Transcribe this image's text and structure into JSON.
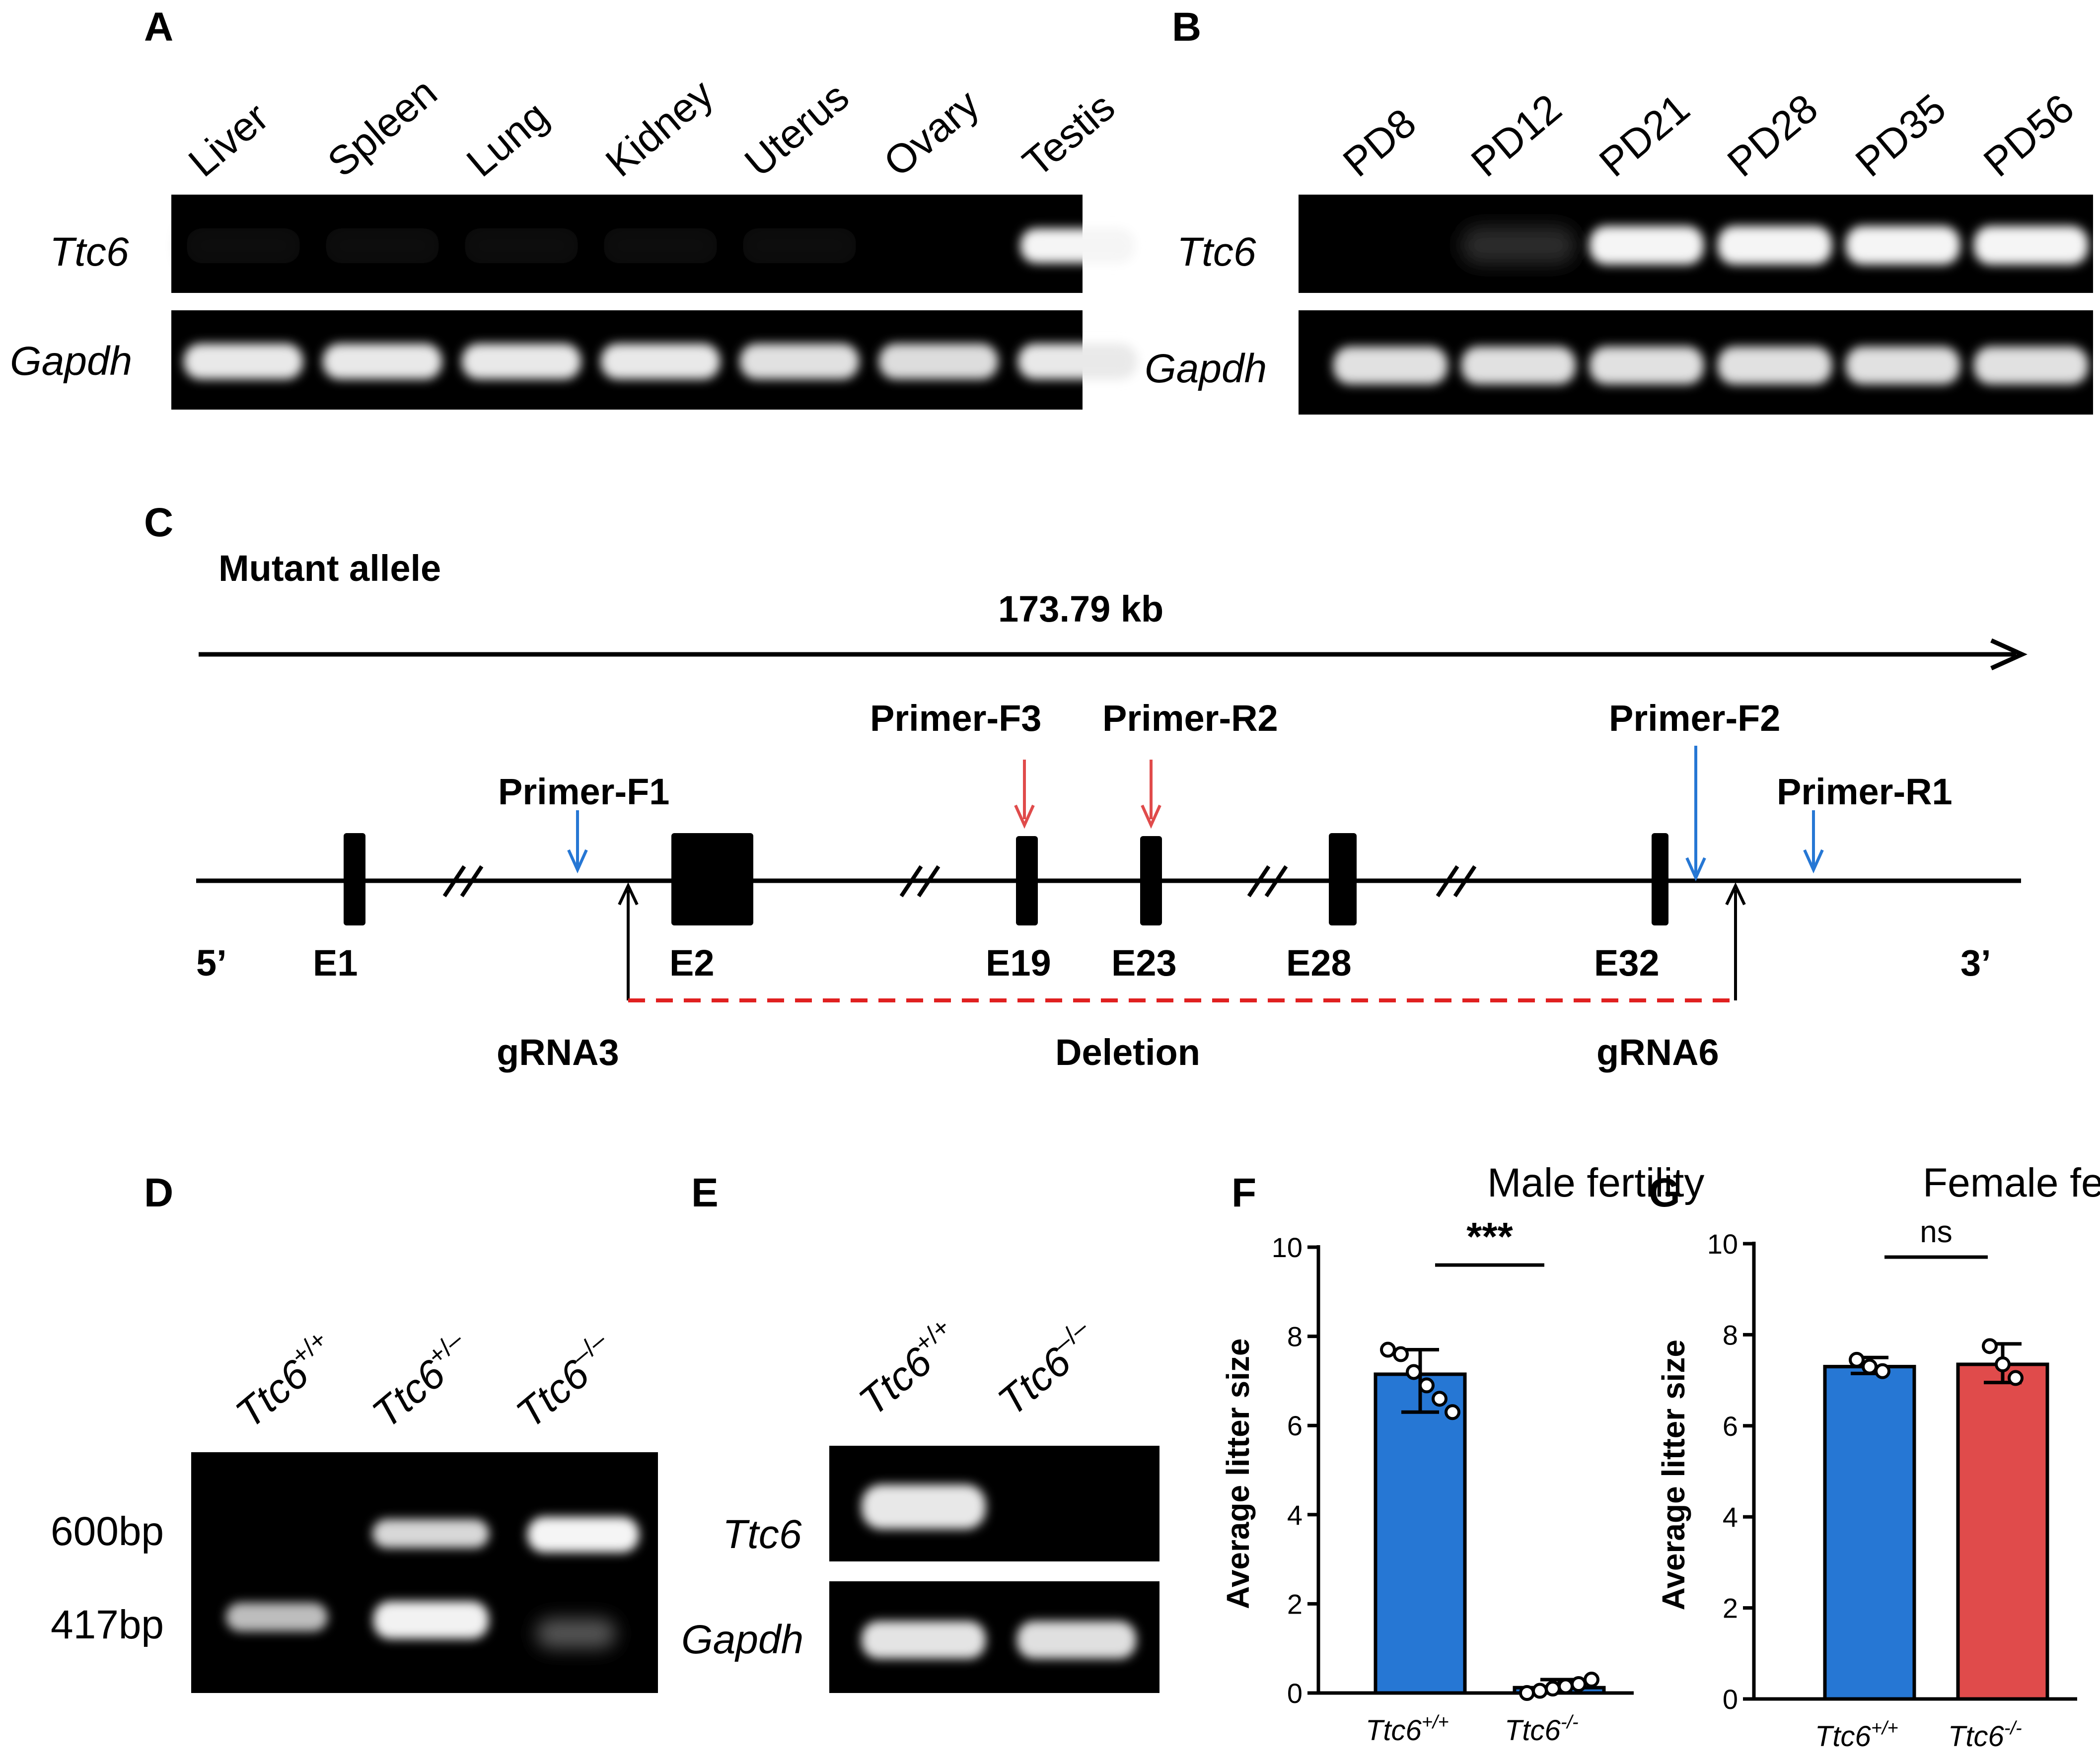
{
  "panels": {
    "A": {
      "label": "A",
      "lanes": [
        "Liver",
        "Spleen",
        "Lung",
        "Kidney",
        "Uterus",
        "Ovary",
        "Testis"
      ],
      "rows": [
        "Ttc6",
        "Gapdh"
      ],
      "ttc6_intensity": [
        0.05,
        0.03,
        0.04,
        0.06,
        0.07,
        0.01,
        1.0
      ],
      "gapdh_intensity": [
        0.95,
        0.95,
        0.95,
        0.95,
        0.92,
        0.9,
        0.95
      ]
    },
    "B": {
      "label": "B",
      "lanes": [
        "PD8",
        "PD12",
        "PD21",
        "PD28",
        "PD35",
        "PD56"
      ],
      "rows": [
        "Ttc6",
        "Gapdh"
      ],
      "ttc6_intensity": [
        0.02,
        0.18,
        1.0,
        1.0,
        1.0,
        1.0
      ],
      "gapdh_intensity": [
        0.92,
        0.92,
        0.92,
        0.92,
        0.92,
        0.92
      ]
    },
    "C": {
      "label": "C",
      "title": "Mutant allele",
      "length": "173.79 kb",
      "primers_blue": [
        "Primer-F1",
        "Primer-F2",
        "Primer-R1"
      ],
      "primers_red": [
        "Primer-F3",
        "Primer-R2"
      ],
      "exons": [
        "E1",
        "E2",
        "E19",
        "E23",
        "E28",
        "E32"
      ],
      "five_prime": "5’",
      "three_prime": "3’",
      "grna_left": "gRNA3",
      "grna_right": "gRNA6",
      "deletion": "Deletion"
    },
    "D": {
      "label": "D",
      "lanes": [
        {
          "base": "Ttc6",
          "sup": "+/+"
        },
        {
          "base": "Ttc6",
          "sup": "+/–"
        },
        {
          "base": "Ttc6",
          "sup": "–/–"
        }
      ],
      "markers": [
        "600bp",
        "417bp"
      ]
    },
    "E": {
      "label": "E",
      "lanes": [
        {
          "base": "Ttc6",
          "sup": "+/+"
        },
        {
          "base": "Ttc6",
          "sup": "–/–"
        }
      ],
      "rows": [
        "Ttc6",
        "Gapdh"
      ]
    },
    "F": {
      "label": "F",
      "chart_data": {
        "type": "bar",
        "title": "Male fertility",
        "ylabel": "Average litter size",
        "ylim": [
          0,
          10
        ],
        "yticks": [
          0,
          2,
          4,
          6,
          8,
          10
        ],
        "categories": [
          {
            "base": "Ttc6",
            "sup": "+/+"
          },
          {
            "base": "Ttc6",
            "sup": "-/-"
          }
        ],
        "values": [
          7.15,
          0.12
        ],
        "error_low": [
          6.3,
          0.0
        ],
        "error_high": [
          7.7,
          0.3
        ],
        "points": [
          [
            7.7,
            7.6,
            7.2,
            6.9,
            6.6,
            6.3
          ],
          [
            0.0,
            0.05,
            0.1,
            0.15,
            0.2,
            0.3
          ]
        ],
        "colors": [
          "#2677d4",
          "#2677d4"
        ],
        "significance": "***"
      }
    },
    "G": {
      "label": "G",
      "chart_data": {
        "type": "bar",
        "title": "Female fertility",
        "ylabel": "Average litter size",
        "ylim": [
          0,
          10
        ],
        "yticks": [
          0,
          2,
          4,
          6,
          8,
          10
        ],
        "categories": [
          {
            "base": "Ttc6",
            "sup": "+/+"
          },
          {
            "base": "Ttc6",
            "sup": "-/-"
          }
        ],
        "values": [
          7.3,
          7.35
        ],
        "error_low": [
          7.15,
          6.95
        ],
        "error_high": [
          7.5,
          7.8
        ],
        "points": [
          [
            7.45,
            7.3,
            7.2
          ],
          [
            7.75,
            7.35,
            7.05
          ]
        ],
        "colors": [
          "#2677d4",
          "#e04b4b"
        ],
        "significance": "ns"
      }
    }
  }
}
